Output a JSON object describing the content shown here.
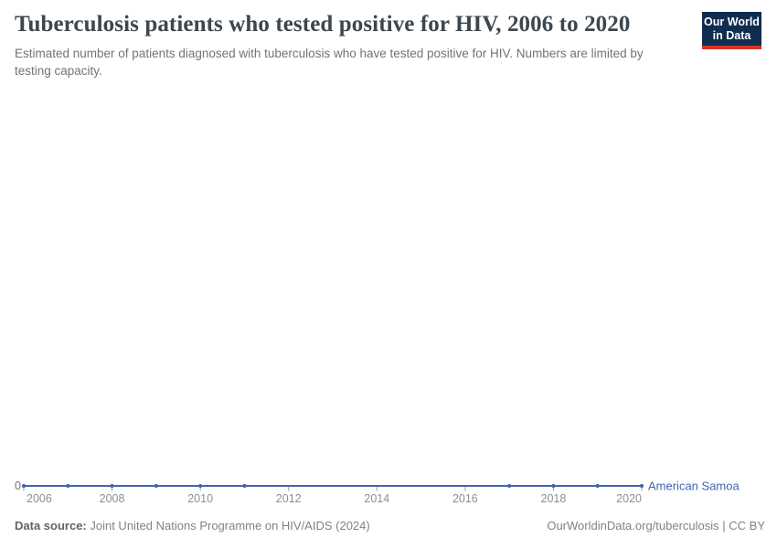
{
  "header": {
    "title": "Tuberculosis patients who tested positive for HIV, 2006 to 2020",
    "subtitle": "Estimated number of patients diagnosed with tuberculosis who have tested positive for HIV. Numbers are limited by testing capacity."
  },
  "logo": {
    "line1": "Our World",
    "line2": "in Data"
  },
  "colors": {
    "line_blue": "#4166ae",
    "logo_navy": "#102d50",
    "logo_red": "#d63425",
    "axis_tick_gray": "#9aa0a5",
    "tick_label_gray": "#8a8f94",
    "zero_label_gray": "#6f7276"
  },
  "chart_data": {
    "type": "line",
    "title": "Tuberculosis patients who tested positive for HIV, 2006 to 2020",
    "subtitle": "Estimated number of patients diagnosed with tuberculosis who have tested positive for HIV. Numbers are limited by testing capacity.",
    "xlabel": "",
    "ylabel": "",
    "xlim": [
      2006,
      2020
    ],
    "ylim": [
      0,
      0
    ],
    "grid": false,
    "legend_position": "right-of-line",
    "x_ticks": [
      2006,
      2008,
      2010,
      2012,
      2014,
      2016,
      2018,
      2020
    ],
    "x_tick_labels": [
      "2006",
      "2008",
      "2010",
      "2012",
      "2014",
      "2016",
      "2018",
      "2020"
    ],
    "y_ticks": [
      0
    ],
    "y_tick_labels": [
      "0"
    ],
    "series": [
      {
        "name": "American Samoa",
        "color": "#4166ae",
        "x": [
          2006,
          2007,
          2008,
          2009,
          2010,
          2011,
          2017,
          2018,
          2019,
          2020
        ],
        "values": [
          0,
          0,
          0,
          0,
          0,
          0,
          0,
          0,
          0,
          0
        ]
      }
    ]
  },
  "footer": {
    "source_label": "Data source:",
    "source_text": " Joint United Nations Programme on HIV/AIDS (2024)",
    "right_text": "OurWorldinData.org/tuberculosis | CC BY"
  }
}
